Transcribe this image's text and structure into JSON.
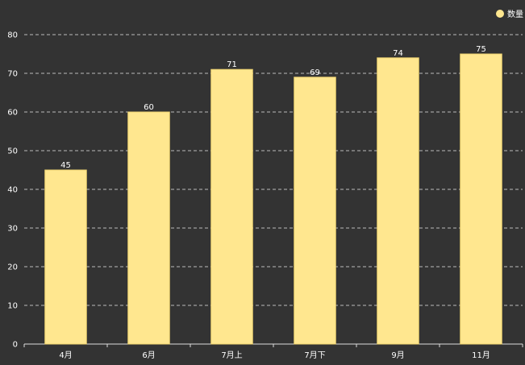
{
  "chart_data": {
    "type": "bar",
    "categories": [
      "4月",
      "6月",
      "7月上",
      "7月下",
      "9月",
      "11月"
    ],
    "series": [
      {
        "name": "数量",
        "values": [
          45,
          60,
          71,
          69,
          74,
          75
        ]
      }
    ],
    "yticks": [
      0,
      10,
      20,
      30,
      40,
      50,
      60,
      70,
      80
    ],
    "ylim": [
      0,
      80
    ],
    "grid": true,
    "legend_position": "top-right",
    "data_labels": true,
    "colors": {
      "background": "#333333",
      "bar": "#ffe78f",
      "bar_stroke": "#f0d470",
      "text": "#ffffff",
      "axis": "#dddddd",
      "grid": "#bbbbbb"
    }
  }
}
